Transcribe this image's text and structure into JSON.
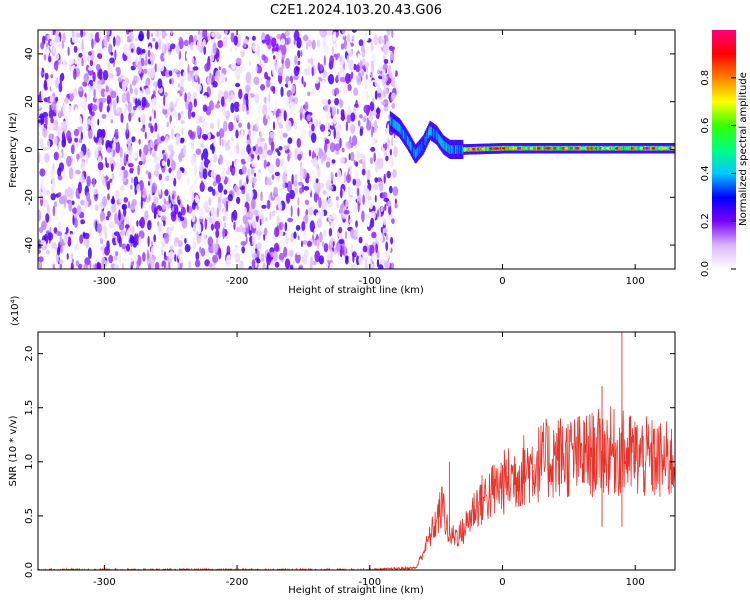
{
  "title": "C2E1.2024.103.20.43.G06",
  "chart_data": [
    {
      "type": "heatmap",
      "xlabel": "Height of straight line (km)",
      "ylabel": "Frequency (Hz)",
      "xlim": [
        -350,
        130
      ],
      "ylim": [
        -50,
        50
      ],
      "x_ticks": [
        -300,
        -200,
        -100,
        0,
        100
      ],
      "y_ticks": [
        -40,
        -20,
        0,
        20,
        40
      ],
      "colorbar": {
        "label": "Normalized spectral amplitude",
        "range": [
          0.0,
          1.0
        ],
        "ticks": [
          0.0,
          0.2,
          0.4,
          0.6,
          0.8
        ],
        "colors": [
          "#ffffff",
          "#d9b3ff",
          "#7a00ff",
          "#0000ff",
          "#00c8ff",
          "#00ff80",
          "#33ff00",
          "#ffff00",
          "#ff8000",
          "#ff0000",
          "#ff0080"
        ]
      },
      "noise_region_x": [
        -350,
        -80
      ],
      "signal_track": [
        {
          "x": -85,
          "y": 12
        },
        {
          "x": -78,
          "y": 9
        },
        {
          "x": -72,
          "y": 4
        },
        {
          "x": -66,
          "y": -2
        },
        {
          "x": -60,
          "y": 2
        },
        {
          "x": -55,
          "y": 8
        },
        {
          "x": -50,
          "y": 6
        },
        {
          "x": -45,
          "y": 2
        },
        {
          "x": -40,
          "y": 0
        },
        {
          "x": -30,
          "y": 0
        },
        {
          "x": 0,
          "y": 0.5
        },
        {
          "x": 50,
          "y": 0.5
        },
        {
          "x": 130,
          "y": 0.5
        }
      ]
    },
    {
      "type": "line",
      "xlabel": "Height of straight line (km)",
      "ylabel": "SNR (10 * v/v)",
      "y_multiplier": "(x10⁴)",
      "xlim": [
        -350,
        130
      ],
      "ylim": [
        0,
        2.2
      ],
      "x_ticks": [
        -300,
        -200,
        -100,
        0,
        100
      ],
      "y_ticks": [
        "0.0",
        "0.5",
        "1.0",
        "1.5",
        "2.0"
      ],
      "series": [
        {
          "color": "#e8332a",
          "values": [
            {
              "x": -350,
              "y": 0.0
            },
            {
              "x": -100,
              "y": 0.0
            },
            {
              "x": -65,
              "y": 0.02
            },
            {
              "x": -55,
              "y": 0.3
            },
            {
              "x": -45,
              "y": 0.6
            },
            {
              "x": -40,
              "y": 0.3
            },
            {
              "x": -30,
              "y": 0.35
            },
            {
              "x": -20,
              "y": 0.6
            },
            {
              "x": -10,
              "y": 0.7
            },
            {
              "x": 0,
              "y": 0.8
            },
            {
              "x": 20,
              "y": 0.95
            },
            {
              "x": 40,
              "y": 1.05
            },
            {
              "x": 60,
              "y": 1.05
            },
            {
              "x": 80,
              "y": 1.1
            },
            {
              "x": 100,
              "y": 1.05
            },
            {
              "x": 120,
              "y": 1.0
            },
            {
              "x": 130,
              "y": 1.0
            }
          ],
          "notable_peaks": [
            {
              "x": -40,
              "y": 1.0
            },
            {
              "x": 90,
              "y": 2.2
            },
            {
              "x": 75,
              "y": 1.7
            }
          ]
        }
      ]
    }
  ]
}
